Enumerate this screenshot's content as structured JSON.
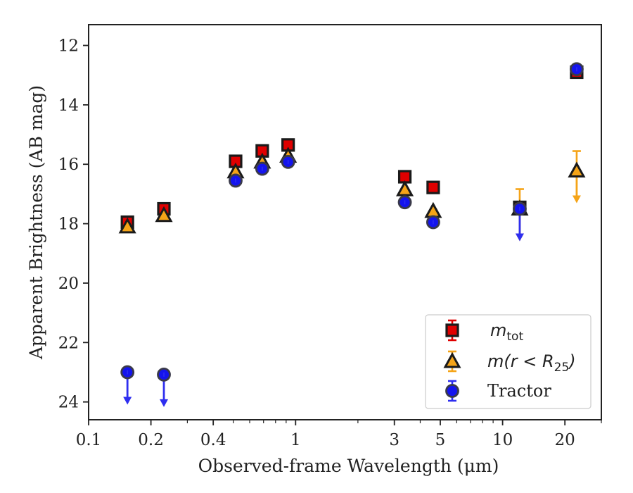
{
  "chart_data": {
    "type": "scatter",
    "xlabel": "Observed-frame Wavelength (μm)",
    "ylabel": "Apparent Brightness (AB mag)",
    "x_scale": "log",
    "y_inverted": true,
    "xlim": [
      0.1,
      30
    ],
    "ylim": [
      24.6,
      11.3
    ],
    "x_ticks": [
      {
        "value": 0.1,
        "label": "0.1"
      },
      {
        "value": 0.2,
        "label": "0.2"
      },
      {
        "value": 0.4,
        "label": "0.4"
      },
      {
        "value": 1,
        "label": "1"
      },
      {
        "value": 3,
        "label": "3"
      },
      {
        "value": 5,
        "label": "5"
      },
      {
        "value": 10,
        "label": "10"
      },
      {
        "value": 20,
        "label": "20"
      }
    ],
    "x_minor_ticks": [
      0.3,
      0.5,
      0.6,
      0.7,
      0.8,
      0.9,
      2,
      4,
      6,
      7,
      8,
      9,
      30
    ],
    "y_ticks": [
      {
        "value": 12,
        "label": "12"
      },
      {
        "value": 14,
        "label": "14"
      },
      {
        "value": 16,
        "label": "16"
      },
      {
        "value": 18,
        "label": "18"
      },
      {
        "value": 20,
        "label": "20"
      },
      {
        "value": 22,
        "label": "22"
      },
      {
        "value": 24,
        "label": "24"
      }
    ],
    "grid": false,
    "legend_position": "bottom-right",
    "series": [
      {
        "name": "m_tot",
        "marker": "square",
        "color": "#e00000",
        "errcolor": "#e00000",
        "points": [
          {
            "x": 0.154,
            "y": 17.95,
            "upper_limit": false
          },
          {
            "x": 0.231,
            "y": 17.5,
            "upper_limit": false
          },
          {
            "x": 0.513,
            "y": 15.9,
            "upper_limit": false
          },
          {
            "x": 0.69,
            "y": 15.55,
            "upper_limit": false
          },
          {
            "x": 0.92,
            "y": 15.35,
            "upper_limit": false
          },
          {
            "x": 3.37,
            "y": 16.42,
            "upper_limit": false
          },
          {
            "x": 4.62,
            "y": 16.78,
            "upper_limit": false
          },
          {
            "x": 12.1,
            "y": 17.45,
            "upper_limit": false
          },
          {
            "x": 22.8,
            "y": 12.9,
            "upper_limit": false
          }
        ]
      },
      {
        "name": "m(r < R_25)",
        "marker": "triangle",
        "color": "#f5a418",
        "errcolor": "#f5a418",
        "points": [
          {
            "x": 0.154,
            "y": 18.1,
            "upper_limit": false
          },
          {
            "x": 0.231,
            "y": 17.72,
            "upper_limit": false
          },
          {
            "x": 0.513,
            "y": 16.25,
            "upper_limit": false
          },
          {
            "x": 0.69,
            "y": 15.92,
            "upper_limit": false
          },
          {
            "x": 0.92,
            "y": 15.72,
            "upper_limit": false
          },
          {
            "x": 3.37,
            "y": 16.85,
            "upper_limit": false
          },
          {
            "x": 4.62,
            "y": 17.58,
            "upper_limit": false
          },
          {
            "x": 12.1,
            "y": 17.5,
            "upper_limit": true
          },
          {
            "x": 22.8,
            "y": 16.22,
            "upper_limit": true
          }
        ]
      },
      {
        "name": "Tractor",
        "marker": "circle",
        "color": "#1414ee",
        "errcolor": "#2e2ef0",
        "points": [
          {
            "x": 0.154,
            "y": 23.0,
            "upper_limit": true
          },
          {
            "x": 0.231,
            "y": 23.08,
            "upper_limit": true
          },
          {
            "x": 0.513,
            "y": 16.55,
            "upper_limit": false
          },
          {
            "x": 0.69,
            "y": 16.15,
            "upper_limit": false
          },
          {
            "x": 0.92,
            "y": 15.92,
            "upper_limit": false
          },
          {
            "x": 3.37,
            "y": 17.28,
            "upper_limit": false
          },
          {
            "x": 4.62,
            "y": 17.95,
            "upper_limit": false
          },
          {
            "x": 12.1,
            "y": 17.5,
            "upper_limit": true
          },
          {
            "x": 22.8,
            "y": 12.8,
            "upper_limit": false
          }
        ]
      }
    ]
  },
  "legend": {
    "m_tot": {
      "base": "m",
      "sub": "tot"
    },
    "m_r": {
      "prefix": "m(r < R",
      "sub": "25",
      "suffix": ")"
    },
    "tractor": {
      "label": "Tractor"
    }
  }
}
